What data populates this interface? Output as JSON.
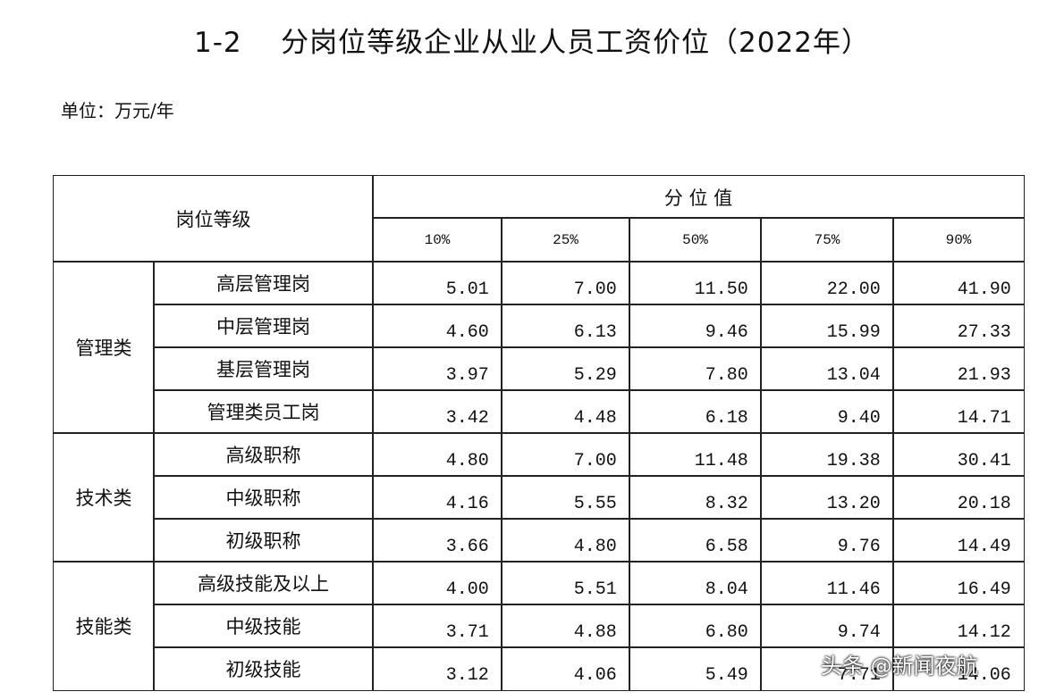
{
  "title": "1-2    分岗位等级企业从业人员工资价位（2022年）",
  "unit": "单位：万元/年",
  "table": {
    "header": {
      "category": "岗位等级",
      "group": "分 位 值",
      "percentiles": [
        "10%",
        "25%",
        "50%",
        "75%",
        "90%"
      ]
    },
    "groups": [
      {
        "name": "管理类",
        "rows": [
          {
            "label": "高层管理岗",
            "values": [
              "5.01",
              "7.00",
              "11.50",
              "22.00",
              "41.90"
            ]
          },
          {
            "label": "中层管理岗",
            "values": [
              "4.60",
              "6.13",
              "9.46",
              "15.99",
              "27.33"
            ]
          },
          {
            "label": "基层管理岗",
            "values": [
              "3.97",
              "5.29",
              "7.80",
              "13.04",
              "21.93"
            ]
          },
          {
            "label": "管理类员工岗",
            "values": [
              "3.42",
              "4.48",
              "6.18",
              "9.40",
              "14.71"
            ]
          }
        ]
      },
      {
        "name": "技术类",
        "rows": [
          {
            "label": "高级职称",
            "values": [
              "4.80",
              "7.00",
              "11.48",
              "19.38",
              "30.41"
            ]
          },
          {
            "label": "中级职称",
            "values": [
              "4.16",
              "5.55",
              "8.32",
              "13.20",
              "20.18"
            ]
          },
          {
            "label": "初级职称",
            "values": [
              "3.66",
              "4.80",
              "6.58",
              "9.76",
              "14.49"
            ]
          }
        ]
      },
      {
        "name": "技能类",
        "rows": [
          {
            "label": "高级技能及以上",
            "values": [
              "4.00",
              "5.51",
              "8.04",
              "11.46",
              "16.49"
            ]
          },
          {
            "label": "中级技能",
            "values": [
              "3.71",
              "4.88",
              "6.80",
              "9.74",
              "14.12"
            ]
          },
          {
            "label": "初级技能",
            "values": [
              "3.12",
              "4.06",
              "5.49",
              "7.71",
              "14.06"
            ]
          }
        ]
      }
    ]
  },
  "watermark": "头条 @新闻夜航"
}
